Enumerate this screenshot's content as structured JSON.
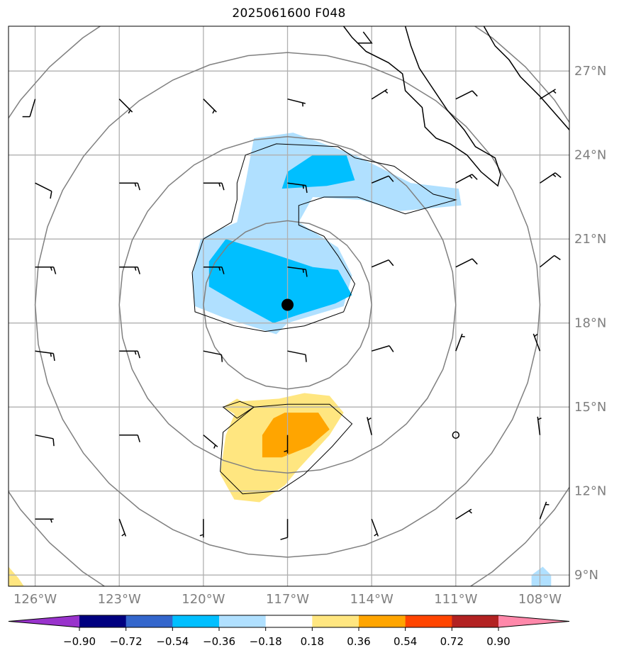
{
  "chart_data": {
    "type": "heatmap",
    "title": "2025061600 F048",
    "lon_ticks": [
      "126°W",
      "123°W",
      "120°W",
      "117°W",
      "114°W",
      "111°W",
      "108°W"
    ],
    "lon_values": [
      -126,
      -123,
      -120,
      -117,
      -114,
      -111,
      -108
    ],
    "lat_ticks": [
      "27°N",
      "24°N",
      "21°N",
      "18°N",
      "15°N",
      "12°N",
      "9°N"
    ],
    "lat_values": [
      27,
      24,
      21,
      18,
      15,
      12,
      9
    ],
    "xlim": [
      -126.95,
      -106.95
    ],
    "ylim": [
      8.6,
      28.6
    ],
    "grid": true,
    "center": {
      "lon": -117.0,
      "lat": 18.65
    },
    "range_rings_deg": [
      3,
      6,
      9,
      12
    ],
    "colorbar": {
      "levels": [
        "−0.90",
        "−0.72",
        "−0.54",
        "−0.36",
        "−0.18",
        "0.18",
        "0.36",
        "0.54",
        "0.72",
        "0.90"
      ],
      "level_values": [
        -0.9,
        -0.72,
        -0.54,
        -0.36,
        -0.18,
        0.18,
        0.36,
        0.54,
        0.72,
        0.9
      ],
      "colors": [
        "#9933cc",
        "#000080",
        "#3366cc",
        "#00bfff",
        "#b0e0ff",
        "#ffffff",
        "#ffe680",
        "#ffa500",
        "#ff4500",
        "#b22222",
        "#ff88aa"
      ],
      "extend": "both"
    },
    "fields": [
      {
        "level": "-0.18 to -0.36",
        "color": "#b0e0ff",
        "polygon": [
          [
            -118.2,
            24.6
          ],
          [
            -116.8,
            24.8
          ],
          [
            -114.6,
            24.0
          ],
          [
            -112.6,
            23.0
          ],
          [
            -110.9,
            22.8
          ],
          [
            -110.8,
            22.2
          ],
          [
            -113.0,
            22.0
          ],
          [
            -114.4,
            22.4
          ],
          [
            -116.1,
            22.5
          ],
          [
            -116.6,
            21.6
          ],
          [
            -115.2,
            20.7
          ],
          [
            -114.7,
            19.7
          ],
          [
            -115.0,
            18.6
          ],
          [
            -117.0,
            18.0
          ],
          [
            -117.4,
            17.6
          ],
          [
            -119.3,
            18.2
          ],
          [
            -120.3,
            18.6
          ],
          [
            -120.4,
            19.7
          ],
          [
            -120.1,
            21.0
          ],
          [
            -119.3,
            21.4
          ],
          [
            -118.8,
            21.6
          ],
          [
            -118.5,
            23.0
          ]
        ]
      },
      {
        "level": "-0.36 to -0.54",
        "color": "#00bfff",
        "polygon": [
          [
            -117.0,
            23.4
          ],
          [
            -116.1,
            24.0
          ],
          [
            -114.9,
            24.0
          ],
          [
            -114.6,
            23.1
          ],
          [
            -115.6,
            22.9
          ],
          [
            -117.2,
            22.8
          ]
        ]
      },
      {
        "level": "-0.36 to -0.54",
        "color": "#00bfff",
        "polygon": [
          [
            -119.2,
            21.0
          ],
          [
            -117.6,
            20.5
          ],
          [
            -116.1,
            20.0
          ],
          [
            -115.2,
            19.9
          ],
          [
            -114.7,
            19.0
          ],
          [
            -115.3,
            18.7
          ],
          [
            -116.6,
            18.3
          ],
          [
            -117.5,
            18.0
          ],
          [
            -118.6,
            18.6
          ],
          [
            -119.8,
            19.3
          ],
          [
            -119.8,
            20.2
          ]
        ]
      },
      {
        "level": "0.18 to 0.36",
        "color": "#ffe680",
        "polygon": [
          [
            -118.7,
            15.2
          ],
          [
            -117.3,
            15.3
          ],
          [
            -116.4,
            15.5
          ],
          [
            -115.5,
            15.4
          ],
          [
            -115.0,
            14.8
          ],
          [
            -115.5,
            14.0
          ],
          [
            -116.6,
            12.8
          ],
          [
            -117.1,
            12.2
          ],
          [
            -118.0,
            11.6
          ],
          [
            -118.9,
            11.7
          ],
          [
            -119.4,
            12.6
          ],
          [
            -119.2,
            14.0
          ]
        ]
      },
      {
        "level": "0.18 to 0.36",
        "color": "#ffe680",
        "polygon": [
          [
            -119.3,
            15.0
          ],
          [
            -118.8,
            15.3
          ],
          [
            -118.3,
            15.0
          ],
          [
            -118.8,
            14.7
          ]
        ]
      },
      {
        "level": "0.36 to 0.54",
        "color": "#ffa500",
        "polygon": [
          [
            -117.1,
            14.8
          ],
          [
            -115.9,
            14.8
          ],
          [
            -115.5,
            14.2
          ],
          [
            -116.2,
            13.6
          ],
          [
            -117.2,
            13.2
          ],
          [
            -117.9,
            13.2
          ],
          [
            -117.9,
            14.0
          ],
          [
            -117.5,
            14.6
          ]
        ]
      },
      {
        "level": "-0.18 to -0.36",
        "color": "#b0e0ff",
        "polygon": [
          [
            -108.3,
            8.6
          ],
          [
            -108.3,
            9.0
          ],
          [
            -107.9,
            9.3
          ],
          [
            -107.6,
            9.0
          ],
          [
            -107.6,
            8.6
          ]
        ]
      },
      {
        "level": "0.18 to 0.36",
        "color": "#ffe680",
        "polygon": [
          [
            -126.95,
            8.6
          ],
          [
            -126.95,
            9.3
          ],
          [
            -126.6,
            8.9
          ],
          [
            -126.4,
            8.6
          ]
        ]
      }
    ],
    "barbs": [
      {
        "lon": -126,
        "lat": 26,
        "u": 3,
        "v": 10
      },
      {
        "lon": -123,
        "lat": 26,
        "u": -5,
        "v": 5
      },
      {
        "lon": -120,
        "lat": 26,
        "u": -5,
        "v": 5
      },
      {
        "lon": -117,
        "lat": 26,
        "u": -8,
        "v": 2
      },
      {
        "lon": -114,
        "lat": 26,
        "u": -8,
        "v": -5
      },
      {
        "lon": -111,
        "lat": 26,
        "u": -10,
        "v": -5
      },
      {
        "lon": -108,
        "lat": 26,
        "u": -8,
        "v": -5
      },
      {
        "lon": -126,
        "lat": 23,
        "u": -10,
        "v": 5
      },
      {
        "lon": -123,
        "lat": 23,
        "u": -15,
        "v": 0
      },
      {
        "lon": -120,
        "lat": 23,
        "u": -15,
        "v": 0
      },
      {
        "lon": -117,
        "lat": 23,
        "u": -15,
        "v": 2
      },
      {
        "lon": -114,
        "lat": 23,
        "u": -12,
        "v": -5
      },
      {
        "lon": -111,
        "lat": 23,
        "u": -15,
        "v": -8
      },
      {
        "lon": -108,
        "lat": 23,
        "u": -15,
        "v": -10
      },
      {
        "lon": -126,
        "lat": 20,
        "u": -15,
        "v": 0
      },
      {
        "lon": -123,
        "lat": 20,
        "u": -15,
        "v": 0
      },
      {
        "lon": -120,
        "lat": 20,
        "u": -15,
        "v": 0
      },
      {
        "lon": -117,
        "lat": 20,
        "u": -15,
        "v": 2
      },
      {
        "lon": -114,
        "lat": 20,
        "u": -12,
        "v": -5
      },
      {
        "lon": -111,
        "lat": 20,
        "u": -10,
        "v": -5
      },
      {
        "lon": -108,
        "lat": 20,
        "u": -10,
        "v": -8
      },
      {
        "lon": -126,
        "lat": 17,
        "u": -15,
        "v": 2
      },
      {
        "lon": -123,
        "lat": 17,
        "u": -15,
        "v": 0
      },
      {
        "lon": -120,
        "lat": 17,
        "u": -10,
        "v": 2
      },
      {
        "lon": -117,
        "lat": 17,
        "u": -10,
        "v": 2
      },
      {
        "lon": -114,
        "lat": 17,
        "u": -10,
        "v": -3
      },
      {
        "lon": -111,
        "lat": 17,
        "u": -3,
        "v": -8
      },
      {
        "lon": -108,
        "lat": 17,
        "u": 3,
        "v": -8
      },
      {
        "lon": -126,
        "lat": 14,
        "u": -10,
        "v": 2
      },
      {
        "lon": -123,
        "lat": 14,
        "u": -10,
        "v": 0
      },
      {
        "lon": -120,
        "lat": 14,
        "u": -6,
        "v": 5
      },
      {
        "lon": -117,
        "lat": 14,
        "u": 0,
        "v": 8
      },
      {
        "lon": -114,
        "lat": 14,
        "u": 2,
        "v": -8
      },
      {
        "lon": -111,
        "lat": 14,
        "u": 0,
        "v": 0
      },
      {
        "lon": -108,
        "lat": 14,
        "u": 1,
        "v": -8
      },
      {
        "lon": -126,
        "lat": 11,
        "u": -8,
        "v": 0
      },
      {
        "lon": -123,
        "lat": 11,
        "u": -3,
        "v": 8
      },
      {
        "lon": -120,
        "lat": 11,
        "u": 0,
        "v": 8
      },
      {
        "lon": -117,
        "lat": 11,
        "u": 0,
        "v": 10
      },
      {
        "lon": -114,
        "lat": 11,
        "u": -3,
        "v": 8
      },
      {
        "lon": -111,
        "lat": 11,
        "u": -8,
        "v": -5
      },
      {
        "lon": -108,
        "lat": 11,
        "u": -3,
        "v": -8
      }
    ],
    "coastlines": [
      [
        [
          -115.0,
          28.6
        ],
        [
          -114.7,
          28.2
        ],
        [
          -114.2,
          27.7
        ],
        [
          -113.4,
          27.3
        ],
        [
          -112.9,
          26.9
        ],
        [
          -112.8,
          26.3
        ],
        [
          -112.2,
          25.7
        ],
        [
          -112.1,
          25.0
        ],
        [
          -111.7,
          24.6
        ],
        [
          -111.2,
          24.4
        ],
        [
          -110.6,
          24.0
        ],
        [
          -110.1,
          23.4
        ],
        [
          -109.5,
          22.9
        ],
        [
          -109.4,
          23.3
        ],
        [
          -109.6,
          23.9
        ],
        [
          -110.3,
          24.3
        ],
        [
          -110.7,
          24.9
        ],
        [
          -111.3,
          25.6
        ],
        [
          -111.9,
          26.5
        ],
        [
          -112.3,
          27.1
        ],
        [
          -112.6,
          27.9
        ],
        [
          -112.8,
          28.6
        ]
      ],
      [
        [
          -110.0,
          28.6
        ],
        [
          -109.6,
          27.9
        ],
        [
          -109.1,
          27.4
        ],
        [
          -108.7,
          26.8
        ],
        [
          -108.0,
          26.1
        ],
        [
          -107.3,
          25.3
        ],
        [
          -106.95,
          24.9
        ]
      ],
      [
        [
          -114.3,
          28.4
        ],
        [
          -114.0,
          28.0
        ],
        [
          -114.5,
          28.0
        ]
      ]
    ],
    "hurricane_outline": [
      [
        -118.8,
        23.0
      ],
      [
        -118.5,
        24.0
      ],
      [
        -117.4,
        24.4
      ],
      [
        -115.2,
        24.3
      ],
      [
        -114.6,
        23.9
      ],
      [
        -113.2,
        23.6
      ],
      [
        -111.8,
        22.6
      ],
      [
        -111.0,
        22.4
      ],
      [
        -112.8,
        21.9
      ],
      [
        -114.5,
        22.5
      ],
      [
        -115.7,
        22.5
      ],
      [
        -116.6,
        22.2
      ],
      [
        -116.6,
        21.5
      ],
      [
        -115.7,
        21.1
      ],
      [
        -115.2,
        20.4
      ],
      [
        -114.6,
        19.4
      ],
      [
        -115.0,
        18.4
      ],
      [
        -116.4,
        17.9
      ],
      [
        -117.8,
        17.7
      ],
      [
        -118.9,
        17.9
      ],
      [
        -120.3,
        18.4
      ],
      [
        -120.4,
        19.8
      ],
      [
        -120.0,
        21.0
      ],
      [
        -119.0,
        21.6
      ],
      [
        -118.8,
        22.4
      ]
    ],
    "pos_outline": [
      [
        -118.2,
        15.0
      ],
      [
        -117.0,
        15.1
      ],
      [
        -115.5,
        15.1
      ],
      [
        -114.7,
        14.4
      ],
      [
        -115.4,
        13.6
      ],
      [
        -116.4,
        12.6
      ],
      [
        -117.3,
        12.0
      ],
      [
        -118.6,
        11.9
      ],
      [
        -119.4,
        12.7
      ],
      [
        -119.3,
        14.1
      ]
    ],
    "small_outline": [
      [
        -119.3,
        15.0
      ],
      [
        -118.7,
        15.2
      ],
      [
        -118.2,
        15.0
      ],
      [
        -118.8,
        14.6
      ]
    ]
  }
}
